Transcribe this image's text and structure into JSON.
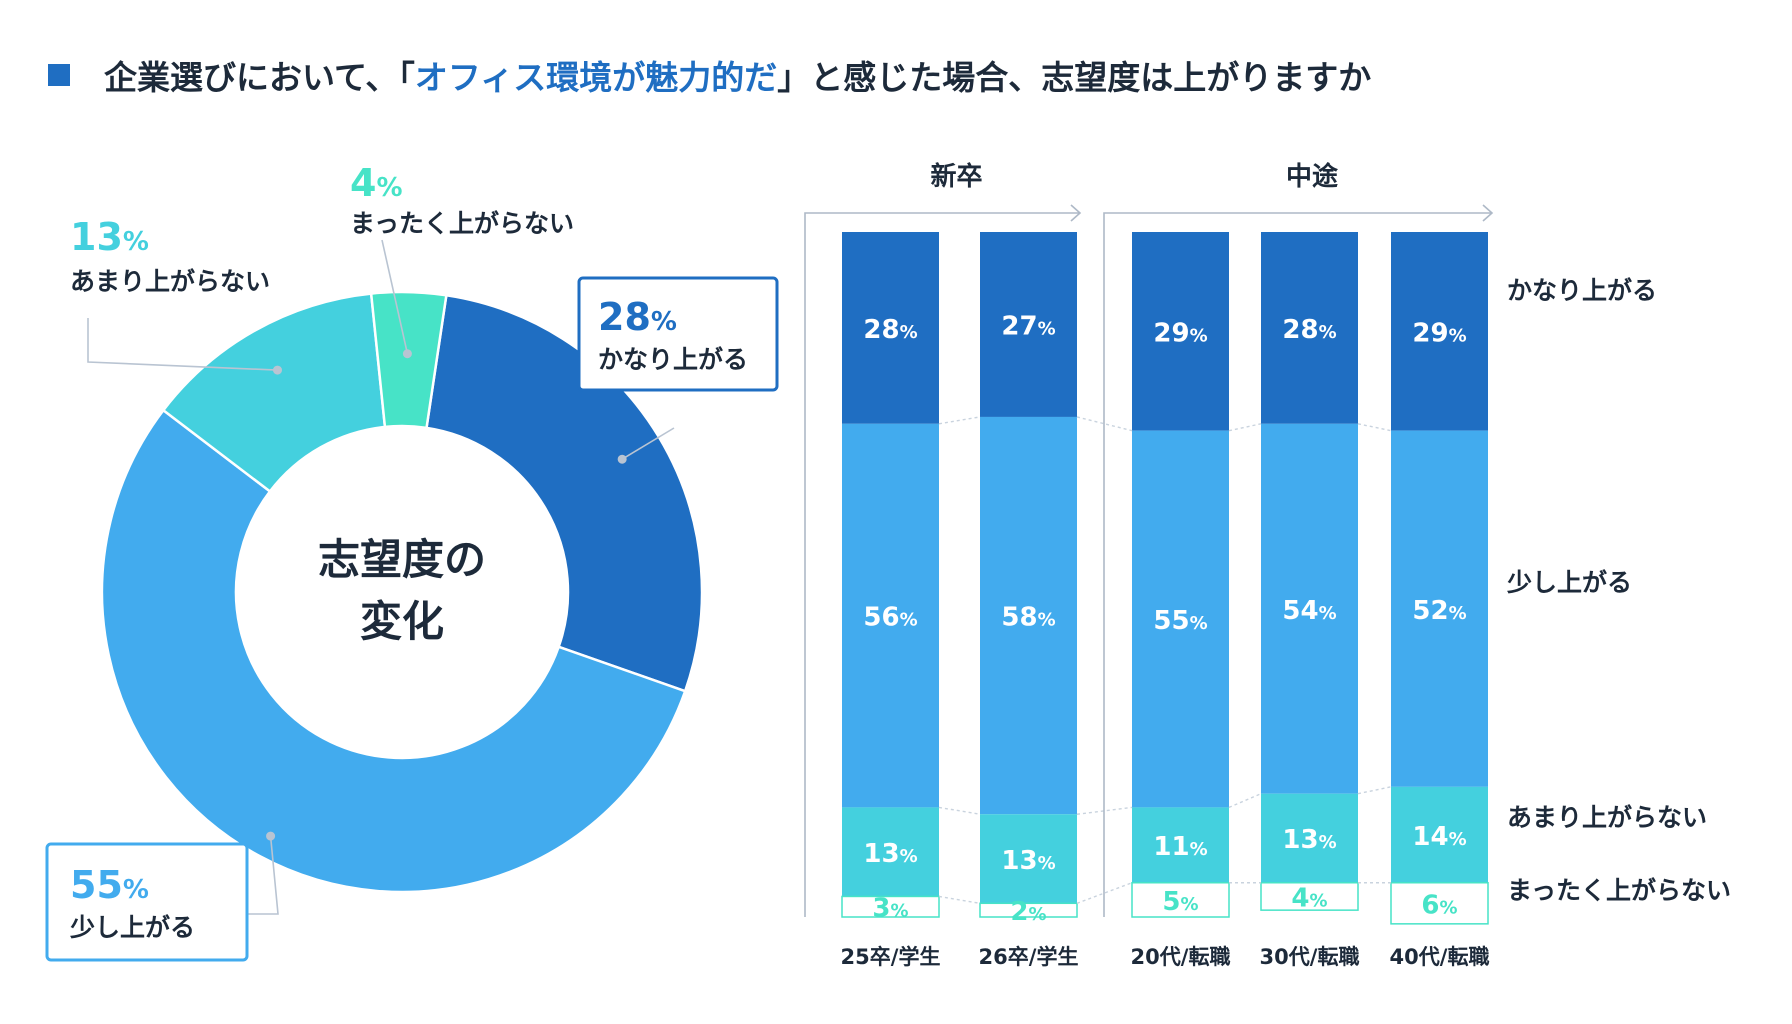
{
  "title": {
    "prefix": "企業選びにおいて、「",
    "highlight": "オフィス環境が魅力的だ",
    "suffix": "」と感じた場合、志望度は上がりますか"
  },
  "colors": {
    "very_up": "#1f6ec2",
    "slightly_up": "#42abee",
    "not_much": "#44d0de",
    "not_at_all": "#47e3c7",
    "text_dark": "#1d2a3a",
    "line": "#b9c4d2"
  },
  "chart_data": [
    {
      "type": "pie",
      "center_label": [
        "志望度の",
        "変化"
      ],
      "slices": [
        {
          "label": "かなり上がる",
          "value": 28,
          "value_text": "28",
          "unit": "%"
        },
        {
          "label": "少し上がる",
          "value": 55,
          "value_text": "55",
          "unit": "%"
        },
        {
          "label": "あまり上がらない",
          "value": 13,
          "value_text": "13",
          "unit": "%"
        },
        {
          "label": "まったく上がらない",
          "value": 4,
          "value_text": "4",
          "unit": "%"
        }
      ]
    },
    {
      "type": "bar",
      "stacked": true,
      "groups": [
        {
          "label": "新卒",
          "categories": [
            "25卒/学生",
            "26卒/学生"
          ]
        },
        {
          "label": "中途",
          "categories": [
            "20代/転職",
            "30代/転職",
            "40代/転職"
          ]
        }
      ],
      "categories": [
        "25卒/学生",
        "26卒/学生",
        "20代/転職",
        "30代/転職",
        "40代/転職"
      ],
      "series": [
        {
          "name": "かなり上がる",
          "values": [
            28,
            27,
            29,
            28,
            29
          ]
        },
        {
          "name": "少し上がる",
          "values": [
            56,
            58,
            55,
            54,
            52
          ]
        },
        {
          "name": "あまり上がらない",
          "values": [
            13,
            13,
            11,
            13,
            14
          ]
        },
        {
          "name": "まったく上がらない",
          "values": [
            3,
            2,
            5,
            4,
            6
          ]
        }
      ],
      "unit": "%",
      "ylim": [
        0,
        100
      ]
    }
  ]
}
